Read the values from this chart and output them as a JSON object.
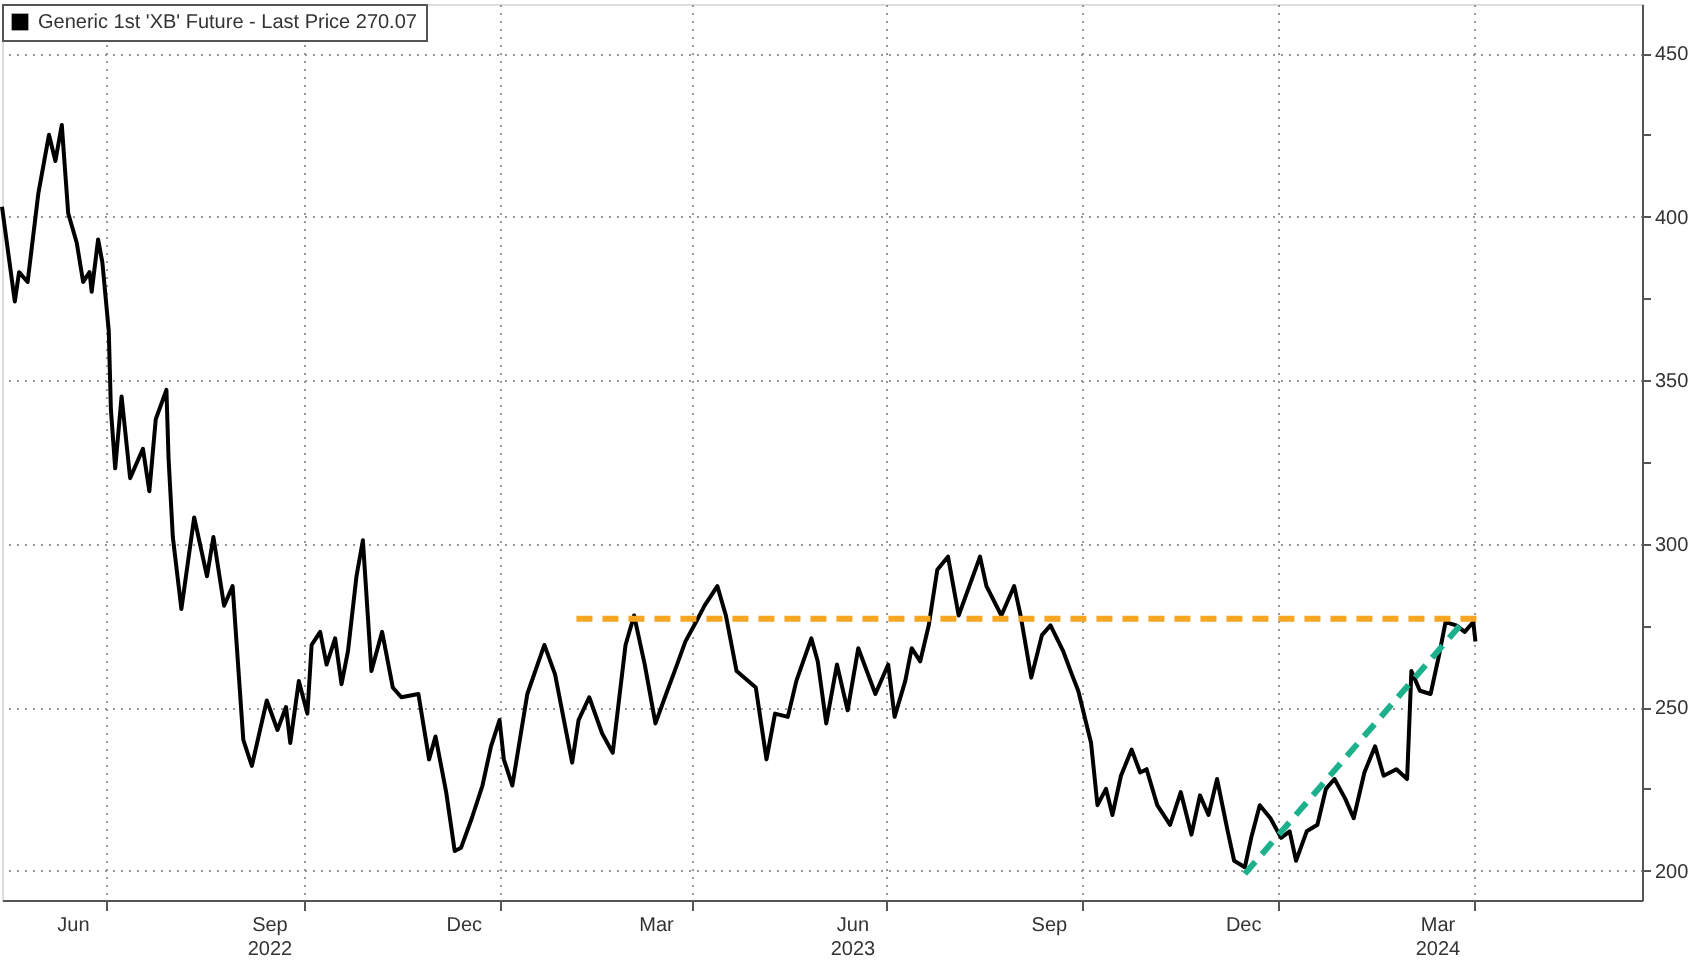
{
  "chart_data": {
    "type": "line",
    "legend": "top left",
    "grid": true,
    "marker": "none",
    "line_style": "solid",
    "x": [
      "2022-05-13",
      "2022-05-19",
      "2022-05-21",
      "2022-05-25",
      "2022-05-30",
      "2022-06-04",
      "2022-06-07",
      "2022-06-10",
      "2022-06-13",
      "2022-06-17",
      "2022-06-20",
      "2022-06-23",
      "2022-06-24",
      "2022-06-27",
      "2022-06-29",
      "2022-07-02",
      "2022-07-03",
      "2022-07-05",
      "2022-07-08",
      "2022-07-12",
      "2022-07-18",
      "2022-07-21",
      "2022-07-24",
      "2022-07-29",
      "2022-07-30",
      "2022-08-01",
      "2022-08-05",
      "2022-08-11",
      "2022-08-17",
      "2022-08-20",
      "2022-08-25",
      "2022-08-29",
      "2022-09-03",
      "2022-09-07",
      "2022-09-14",
      "2022-09-19",
      "2022-09-23",
      "2022-09-25",
      "2022-09-29",
      "2022-10-03",
      "2022-10-05",
      "2022-10-09",
      "2022-10-12",
      "2022-10-16",
      "2022-10-19",
      "2022-10-22",
      "2022-10-26",
      "2022-10-29",
      "2022-11-02",
      "2022-11-07",
      "2022-11-12",
      "2022-11-16",
      "2022-11-24",
      "2022-11-29",
      "2022-12-02",
      "2022-12-07",
      "2022-12-11",
      "2022-12-14",
      "2022-12-19",
      "2022-12-24",
      "2022-12-28",
      "2023-01-01",
      "2023-01-03",
      "2023-01-07",
      "2023-01-14",
      "2023-01-22",
      "2023-01-27",
      "2023-02-04",
      "2023-02-07",
      "2023-02-12",
      "2023-02-18",
      "2023-02-23",
      "2023-03-01",
      "2023-03-05",
      "2023-03-10",
      "2023-03-15",
      "2023-03-20",
      "2023-03-24",
      "2023-03-29",
      "2023-04-03",
      "2023-04-07",
      "2023-04-13",
      "2023-04-17",
      "2023-04-22",
      "2023-05-01",
      "2023-05-06",
      "2023-05-10",
      "2023-05-16",
      "2023-05-20",
      "2023-05-27",
      "2023-05-30",
      "2023-06-03",
      "2023-06-08",
      "2023-06-13",
      "2023-06-18",
      "2023-06-26",
      "2023-07-02",
      "2023-07-05",
      "2023-07-10",
      "2023-07-13",
      "2023-07-17",
      "2023-07-21",
      "2023-07-25",
      "2023-07-30",
      "2023-08-04",
      "2023-08-09",
      "2023-08-14",
      "2023-08-17",
      "2023-08-24",
      "2023-08-30",
      "2023-09-02",
      "2023-09-07",
      "2023-09-12",
      "2023-09-16",
      "2023-09-22",
      "2023-09-26",
      "2023-09-29",
      "2023-10-05",
      "2023-10-08",
      "2023-10-12",
      "2023-10-15",
      "2023-10-19",
      "2023-10-24",
      "2023-10-28",
      "2023-10-31",
      "2023-11-05",
      "2023-11-11",
      "2023-11-16",
      "2023-11-21",
      "2023-11-25",
      "2023-11-29",
      "2023-12-03",
      "2023-12-08",
      "2023-12-11",
      "2023-12-16",
      "2023-12-19",
      "2023-12-23",
      "2023-12-28",
      "2024-01-02",
      "2024-01-06",
      "2024-01-09",
      "2024-01-14",
      "2024-01-19",
      "2024-01-23",
      "2024-01-27",
      "2024-02-01",
      "2024-02-05",
      "2024-02-10",
      "2024-02-15",
      "2024-02-19",
      "2024-02-25",
      "2024-03-01",
      "2024-03-03",
      "2024-03-07",
      "2024-03-12",
      "2024-03-16",
      "2024-03-19",
      "2024-03-24",
      "2024-03-28",
      "2024-04-01",
      "2024-04-02"
    ],
    "series": [
      {
        "name": "Generic 1st 'XB' Future - Last Price 270.07",
        "color": "#000000",
        "values": [
          403,
          374,
          383,
          380,
          407,
          425,
          417,
          428,
          401,
          392,
          380,
          383,
          377,
          393,
          386,
          365,
          341,
          323,
          345,
          320,
          329,
          316,
          338,
          347,
          326,
          302,
          280,
          308,
          290,
          302,
          281,
          287,
          240,
          232,
          252,
          243,
          250,
          239,
          258,
          248,
          269,
          273,
          263,
          271,
          257,
          267,
          290,
          301,
          261,
          273,
          256,
          253,
          254,
          234,
          241,
          224,
          206,
          207,
          216,
          226,
          238,
          246,
          234,
          226,
          254,
          269,
          260,
          233,
          246,
          253,
          242,
          236,
          269,
          278,
          263,
          245,
          254,
          261,
          270,
          276,
          281,
          287,
          278,
          261,
          256,
          234,
          248,
          247,
          258,
          271,
          264,
          245,
          263,
          249,
          268,
          254,
          263,
          247,
          258,
          268,
          264,
          275,
          292,
          296,
          278,
          287,
          296,
          287,
          278,
          287,
          278,
          259,
          272,
          275,
          267,
          260,
          255,
          239,
          220,
          225,
          217,
          229,
          237,
          230,
          231,
          220,
          214,
          224,
          211,
          223,
          217,
          228,
          212,
          203,
          201,
          210,
          220,
          216,
          210,
          212,
          203,
          212,
          214,
          225,
          228,
          222,
          216,
          230,
          238,
          229,
          231,
          228,
          261,
          255,
          254,
          266,
          276,
          275,
          273,
          276,
          270.07
        ]
      },
      {
        "type": "line",
        "x": [
          "2023-02-06",
          "2024-04-04"
        ],
        "values": [
          277,
          277
        ],
        "color": "#f5a623",
        "line_style": "dashed"
      },
      {
        "type": "line",
        "x": [
          "2023-12-16",
          "2024-03-28"
        ],
        "values": [
          199,
          276.6
        ],
        "color": "#1db08c",
        "line_style": "dashed"
      }
    ],
    "xlim": [
      "2022-05-13",
      "2024-06-19"
    ],
    "ylim": [
      191,
      465
    ],
    "xticks": [
      {
        "value": "2022-06-15",
        "label": "Jun"
      },
      {
        "value": "2022-07-01",
        "label": null
      },
      {
        "value": "2022-09-15",
        "label": "Sep\n2022"
      },
      {
        "value": "2022-10-01",
        "label": null
      },
      {
        "value": "2022-12-15",
        "label": "Dec"
      },
      {
        "value": "2023-01-01",
        "label": null
      },
      {
        "value": "2023-03-15",
        "label": "Mar"
      },
      {
        "value": "2023-04-01",
        "label": null
      },
      {
        "value": "2023-06-15",
        "label": "Jun\n2023"
      },
      {
        "value": "2023-07-01",
        "label": null
      },
      {
        "value": "2023-09-15",
        "label": "Sep"
      },
      {
        "value": "2023-10-01",
        "label": null
      },
      {
        "value": "2023-12-15",
        "label": "Dec"
      },
      {
        "value": "2024-01-01",
        "label": null
      },
      {
        "value": "2024-03-15",
        "label": "Mar\n2024"
      },
      {
        "value": "2024-04-01",
        "label": null
      }
    ],
    "yticks": [
      200,
      {
        "value": 225,
        "label": null
      },
      250,
      {
        "value": 275,
        "label": null
      },
      300,
      {
        "value": 325,
        "label": null
      },
      350,
      {
        "value": 375,
        "label": null
      },
      400,
      {
        "value": 425,
        "label": null
      },
      450
    ]
  }
}
